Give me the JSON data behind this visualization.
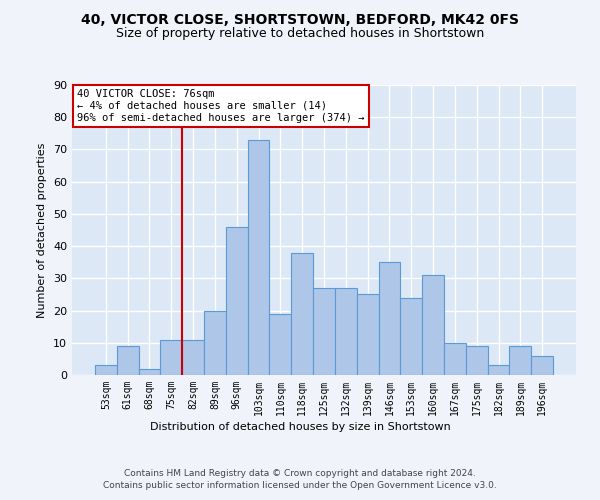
{
  "title1": "40, VICTOR CLOSE, SHORTSTOWN, BEDFORD, MK42 0FS",
  "title2": "Size of property relative to detached houses in Shortstown",
  "xlabel": "Distribution of detached houses by size in Shortstown",
  "ylabel": "Number of detached properties",
  "footer": "Contains HM Land Registry data © Crown copyright and database right 2024.\nContains public sector information licensed under the Open Government Licence v3.0.",
  "bar_labels": [
    "53sqm",
    "61sqm",
    "68sqm",
    "75sqm",
    "82sqm",
    "89sqm",
    "96sqm",
    "103sqm",
    "110sqm",
    "118sqm",
    "125sqm",
    "132sqm",
    "139sqm",
    "146sqm",
    "153sqm",
    "160sqm",
    "167sqm",
    "175sqm",
    "182sqm",
    "189sqm",
    "196sqm"
  ],
  "bar_values": [
    3,
    9,
    2,
    11,
    11,
    20,
    46,
    73,
    19,
    38,
    27,
    27,
    25,
    35,
    24,
    31,
    10,
    9,
    3,
    9,
    6
  ],
  "bar_color": "#aec6e8",
  "bar_edgecolor": "#5b9bd5",
  "vline_x": 3.5,
  "vline_color": "#cc0000",
  "annotation_text": "40 VICTOR CLOSE: 76sqm\n← 4% of detached houses are smaller (14)\n96% of semi-detached houses are larger (374) →",
  "annotation_box_color": "#cc0000",
  "ylim": [
    0,
    90
  ],
  "yticks": [
    0,
    10,
    20,
    30,
    40,
    50,
    60,
    70,
    80,
    90
  ],
  "fig_bg_color": "#f0f4fa",
  "plot_bg_color": "#dce8f5",
  "grid_color": "#ffffff",
  "title1_fontsize": 10,
  "title2_fontsize": 9,
  "ylabel_fontsize": 8,
  "xlabel_fontsize": 8,
  "footer_fontsize": 6.5,
  "tick_fontsize": 7,
  "annotation_fontsize": 7.5
}
